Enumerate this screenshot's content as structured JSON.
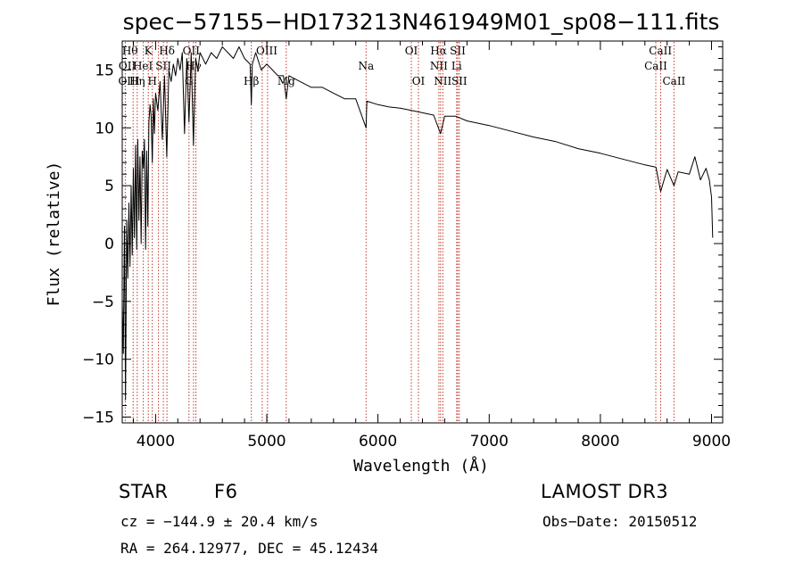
{
  "chart_data": {
    "type": "line",
    "title": "spec−57155−HD173213N461949M01_sp08−111.fits",
    "xlabel": "Wavelength (Å)",
    "ylabel": "Flux (relative)",
    "xlim": [
      3700,
      9100
    ],
    "ylim": [
      -15.5,
      17.5
    ],
    "x_ticks": [
      4000,
      5000,
      6000,
      7000,
      8000,
      9000
    ],
    "x_tick_labels": [
      "4000",
      "5000",
      "6000",
      "7000",
      "8000",
      "9000"
    ],
    "y_ticks": [
      -15,
      -10,
      -5,
      0,
      5,
      10,
      15
    ],
    "y_tick_labels": [
      "−15",
      "−10",
      "−5",
      "0",
      "5",
      "10",
      "15"
    ],
    "line_markers": [
      3727,
      3798,
      3835,
      3889,
      3934,
      3970,
      4026,
      4070,
      4102,
      4300,
      4341,
      4363,
      4861,
      4959,
      5007,
      5175,
      5893,
      6300,
      6364,
      6548,
      6563,
      6583,
      6707,
      6717,
      6731,
      8498,
      8542,
      8662
    ],
    "line_labels": [
      {
        "text": "Hθ",
        "x": 3770,
        "row": 1
      },
      {
        "text": "K",
        "x": 3934,
        "row": 1
      },
      {
        "text": "Hδ",
        "x": 4102,
        "row": 1
      },
      {
        "text": "OII",
        "x": 4320,
        "row": 1
      },
      {
        "text": "OIII",
        "x": 5000,
        "row": 1
      },
      {
        "text": "OI",
        "x": 6300,
        "row": 1
      },
      {
        "text": "Hα",
        "x": 6545,
        "row": 1
      },
      {
        "text": "SII",
        "x": 6717,
        "row": 1
      },
      {
        "text": "CaII",
        "x": 8540,
        "row": 1
      },
      {
        "text": "OII",
        "x": 3745,
        "row": 2
      },
      {
        "text": "HeI",
        "x": 3885,
        "row": 2
      },
      {
        "text": "SII",
        "x": 4070,
        "row": 2
      },
      {
        "text": "Hγ",
        "x": 4341,
        "row": 2
      },
      {
        "text": "Na",
        "x": 5893,
        "row": 2
      },
      {
        "text": "NII",
        "x": 6548,
        "row": 2
      },
      {
        "text": "Li",
        "x": 6707,
        "row": 2
      },
      {
        "text": "CaII",
        "x": 8498,
        "row": 2
      },
      {
        "text": "OIII",
        "x": 3760,
        "row": 3
      },
      {
        "text": "Hη",
        "x": 3835,
        "row": 3
      },
      {
        "text": "H",
        "x": 3970,
        "row": 3
      },
      {
        "text": "G",
        "x": 4300,
        "row": 3
      },
      {
        "text": "Hβ",
        "x": 4861,
        "row": 3
      },
      {
        "text": "Mg",
        "x": 5175,
        "row": 3
      },
      {
        "text": "OI",
        "x": 6364,
        "row": 3
      },
      {
        "text": "NII",
        "x": 6583,
        "row": 3
      },
      {
        "text": "SII",
        "x": 6731,
        "row": 3
      },
      {
        "text": "CaII",
        "x": 8662,
        "row": 3
      }
    ],
    "series": [
      {
        "name": "flux",
        "x": [
          3700,
          3710,
          3720,
          3730,
          3740,
          3750,
          3760,
          3770,
          3780,
          3790,
          3800,
          3810,
          3820,
          3830,
          3840,
          3850,
          3860,
          3870,
          3880,
          3890,
          3900,
          3910,
          3920,
          3930,
          3940,
          3950,
          3960,
          3970,
          3980,
          3990,
          4000,
          4020,
          4040,
          4060,
          4080,
          4100,
          4120,
          4140,
          4160,
          4180,
          4200,
          4220,
          4240,
          4260,
          4280,
          4300,
          4320,
          4340,
          4360,
          4380,
          4400,
          4450,
          4500,
          4550,
          4600,
          4650,
          4700,
          4750,
          4800,
          4850,
          4861,
          4870,
          4900,
          4950,
          5000,
          5050,
          5100,
          5150,
          5175,
          5200,
          5300,
          5400,
          5500,
          5600,
          5700,
          5800,
          5893,
          5900,
          6000,
          6100,
          6200,
          6300,
          6400,
          6500,
          6563,
          6600,
          6700,
          6800,
          6900,
          7000,
          7200,
          7400,
          7600,
          7800,
          8000,
          8200,
          8400,
          8500,
          8542,
          8600,
          8662,
          8700,
          8800,
          8850,
          8900,
          8950,
          8980,
          9000,
          9010
        ],
        "values": [
          -5.0,
          -9.5,
          1.5,
          -13.5,
          2.0,
          -3.0,
          3.5,
          -2.0,
          5.0,
          -1.0,
          6.5,
          0.5,
          8.5,
          -0.5,
          9.0,
          2.0,
          7.5,
          0.0,
          8.0,
          6.5,
          9.0,
          -0.5,
          8.0,
          1.5,
          10.5,
          12.0,
          11.0,
          7.0,
          12.5,
          9.5,
          13.0,
          11.5,
          14.0,
          9.0,
          14.5,
          7.5,
          15.0,
          14.0,
          15.5,
          14.5,
          16.0,
          15.0,
          16.5,
          9.5,
          16.0,
          10.5,
          16.5,
          8.5,
          16.0,
          15.0,
          16.5,
          15.5,
          16.5,
          16.0,
          17.0,
          16.5,
          16.0,
          17.0,
          16.0,
          15.5,
          12.0,
          15.5,
          16.5,
          15.0,
          15.5,
          15.0,
          14.5,
          14.5,
          12.5,
          14.5,
          14.0,
          13.5,
          13.5,
          13.0,
          12.5,
          12.5,
          10.0,
          12.3,
          12.0,
          11.8,
          11.7,
          11.5,
          11.3,
          11.1,
          9.5,
          11.0,
          11.0,
          10.6,
          10.4,
          10.2,
          9.7,
          9.2,
          8.8,
          8.2,
          7.8,
          7.3,
          6.8,
          6.6,
          4.5,
          6.4,
          5.0,
          6.2,
          6.0,
          7.5,
          5.5,
          6.5,
          5.5,
          4.0,
          0.5
        ]
      }
    ]
  },
  "info": {
    "object_type": "STAR",
    "subclass": "F6",
    "survey": "LAMOST DR3",
    "cz": "cz = −144.9 ± 20.4 km/s",
    "obs_date": "Obs−Date: 20150512",
    "radec": "RA = 264.12977, DEC =  45.12434"
  }
}
